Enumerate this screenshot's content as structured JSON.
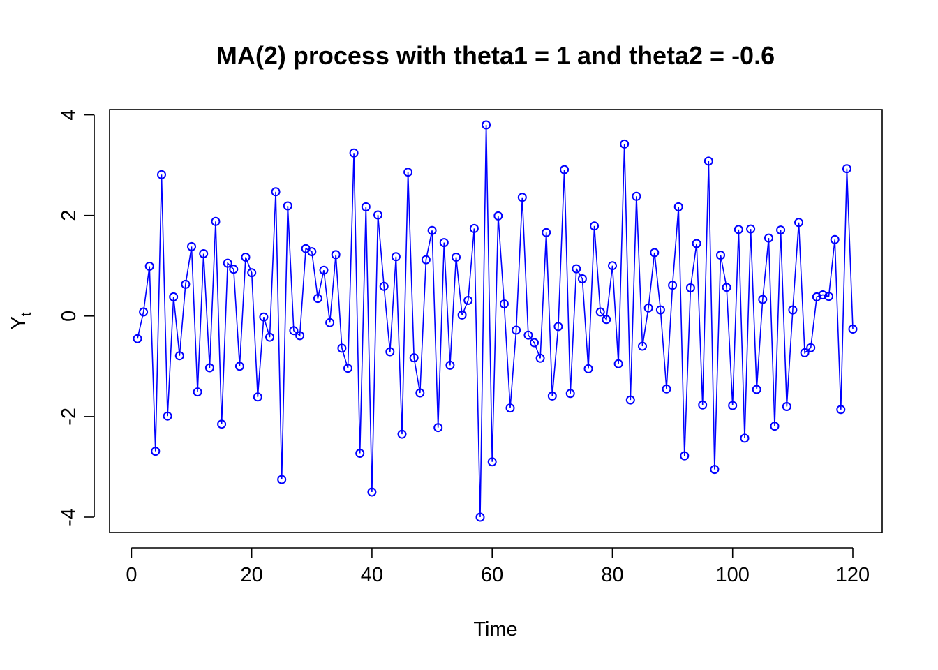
{
  "chart_data": {
    "type": "line",
    "title": "MA(2) process with theta1 = 1 and theta2 = -0.6",
    "xlabel": "Time",
    "ylabel": "Y",
    "ylabel_subscript": "t",
    "xlim": [
      1,
      120
    ],
    "ylim": [
      -4.0,
      3.8
    ],
    "x_ticks": [
      0,
      20,
      40,
      60,
      80,
      100,
      120
    ],
    "x_tick_labels": [
      "0",
      "20",
      "40",
      "60",
      "80",
      "100",
      "120"
    ],
    "y_ticks": [
      -4,
      -2,
      0,
      2,
      4
    ],
    "y_tick_labels": [
      "-4",
      "-2",
      "0",
      "2",
      "4"
    ],
    "grid": false,
    "markers": "open-circle",
    "series_color": "#0000ff",
    "series": [
      {
        "name": "",
        "x": [
          1,
          2,
          3,
          4,
          5,
          6,
          7,
          8,
          9,
          10,
          11,
          12,
          13,
          14,
          15,
          16,
          17,
          18,
          19,
          20,
          21,
          22,
          23,
          24,
          25,
          26,
          27,
          28,
          29,
          30,
          31,
          32,
          33,
          34,
          35,
          36,
          37,
          38,
          39,
          40,
          41,
          42,
          43,
          44,
          45,
          46,
          47,
          48,
          49,
          50,
          51,
          52,
          53,
          54,
          55,
          56,
          57,
          58,
          59,
          60,
          61,
          62,
          63,
          64,
          65,
          66,
          67,
          68,
          69,
          70,
          71,
          72,
          73,
          74,
          75,
          76,
          77,
          78,
          79,
          80,
          81,
          82,
          83,
          84,
          85,
          86,
          87,
          88,
          89,
          90,
          91,
          92,
          93,
          94,
          95,
          96,
          97,
          98,
          99,
          100,
          101,
          102,
          103,
          104,
          105,
          106,
          107,
          108,
          109,
          110,
          111,
          112,
          113,
          114,
          115,
          116,
          117,
          118,
          119,
          120
        ],
        "values": [
          -0.45,
          0.08,
          0.99,
          -2.69,
          2.81,
          -1.99,
          0.38,
          -0.79,
          0.63,
          1.38,
          -1.51,
          1.24,
          -1.03,
          1.88,
          -2.15,
          1.05,
          0.93,
          -1.0,
          1.17,
          0.86,
          -1.61,
          -0.02,
          -0.42,
          2.47,
          -3.25,
          2.19,
          -0.29,
          -0.39,
          1.34,
          1.28,
          0.35,
          0.91,
          -0.13,
          1.22,
          -0.64,
          -1.04,
          3.24,
          -2.73,
          2.17,
          -3.5,
          2.01,
          0.59,
          -0.71,
          1.18,
          -2.35,
          2.86,
          -0.83,
          -1.53,
          1.12,
          1.7,
          -2.22,
          1.46,
          -0.98,
          1.17,
          0.02,
          0.31,
          1.74,
          -4.0,
          3.8,
          -2.9,
          1.99,
          0.24,
          -1.83,
          -0.28,
          2.36,
          -0.38,
          -0.53,
          -0.84,
          1.66,
          -1.59,
          -0.21,
          2.91,
          -1.54,
          0.94,
          0.74,
          -1.05,
          1.79,
          0.08,
          -0.07,
          1.0,
          -0.95,
          3.42,
          -1.67,
          2.38,
          -0.6,
          0.16,
          1.26,
          0.12,
          -1.45,
          0.61,
          2.17,
          -2.78,
          0.56,
          1.44,
          -1.77,
          3.08,
          -3.05,
          1.21,
          0.57,
          -1.78,
          1.72,
          -2.43,
          1.73,
          -1.46,
          0.33,
          1.55,
          -2.19,
          1.71,
          -1.8,
          0.12,
          1.86,
          -0.73,
          -0.63,
          0.38,
          0.42,
          0.39,
          1.52,
          -1.86,
          2.93,
          -0.26
        ]
      }
    ]
  }
}
